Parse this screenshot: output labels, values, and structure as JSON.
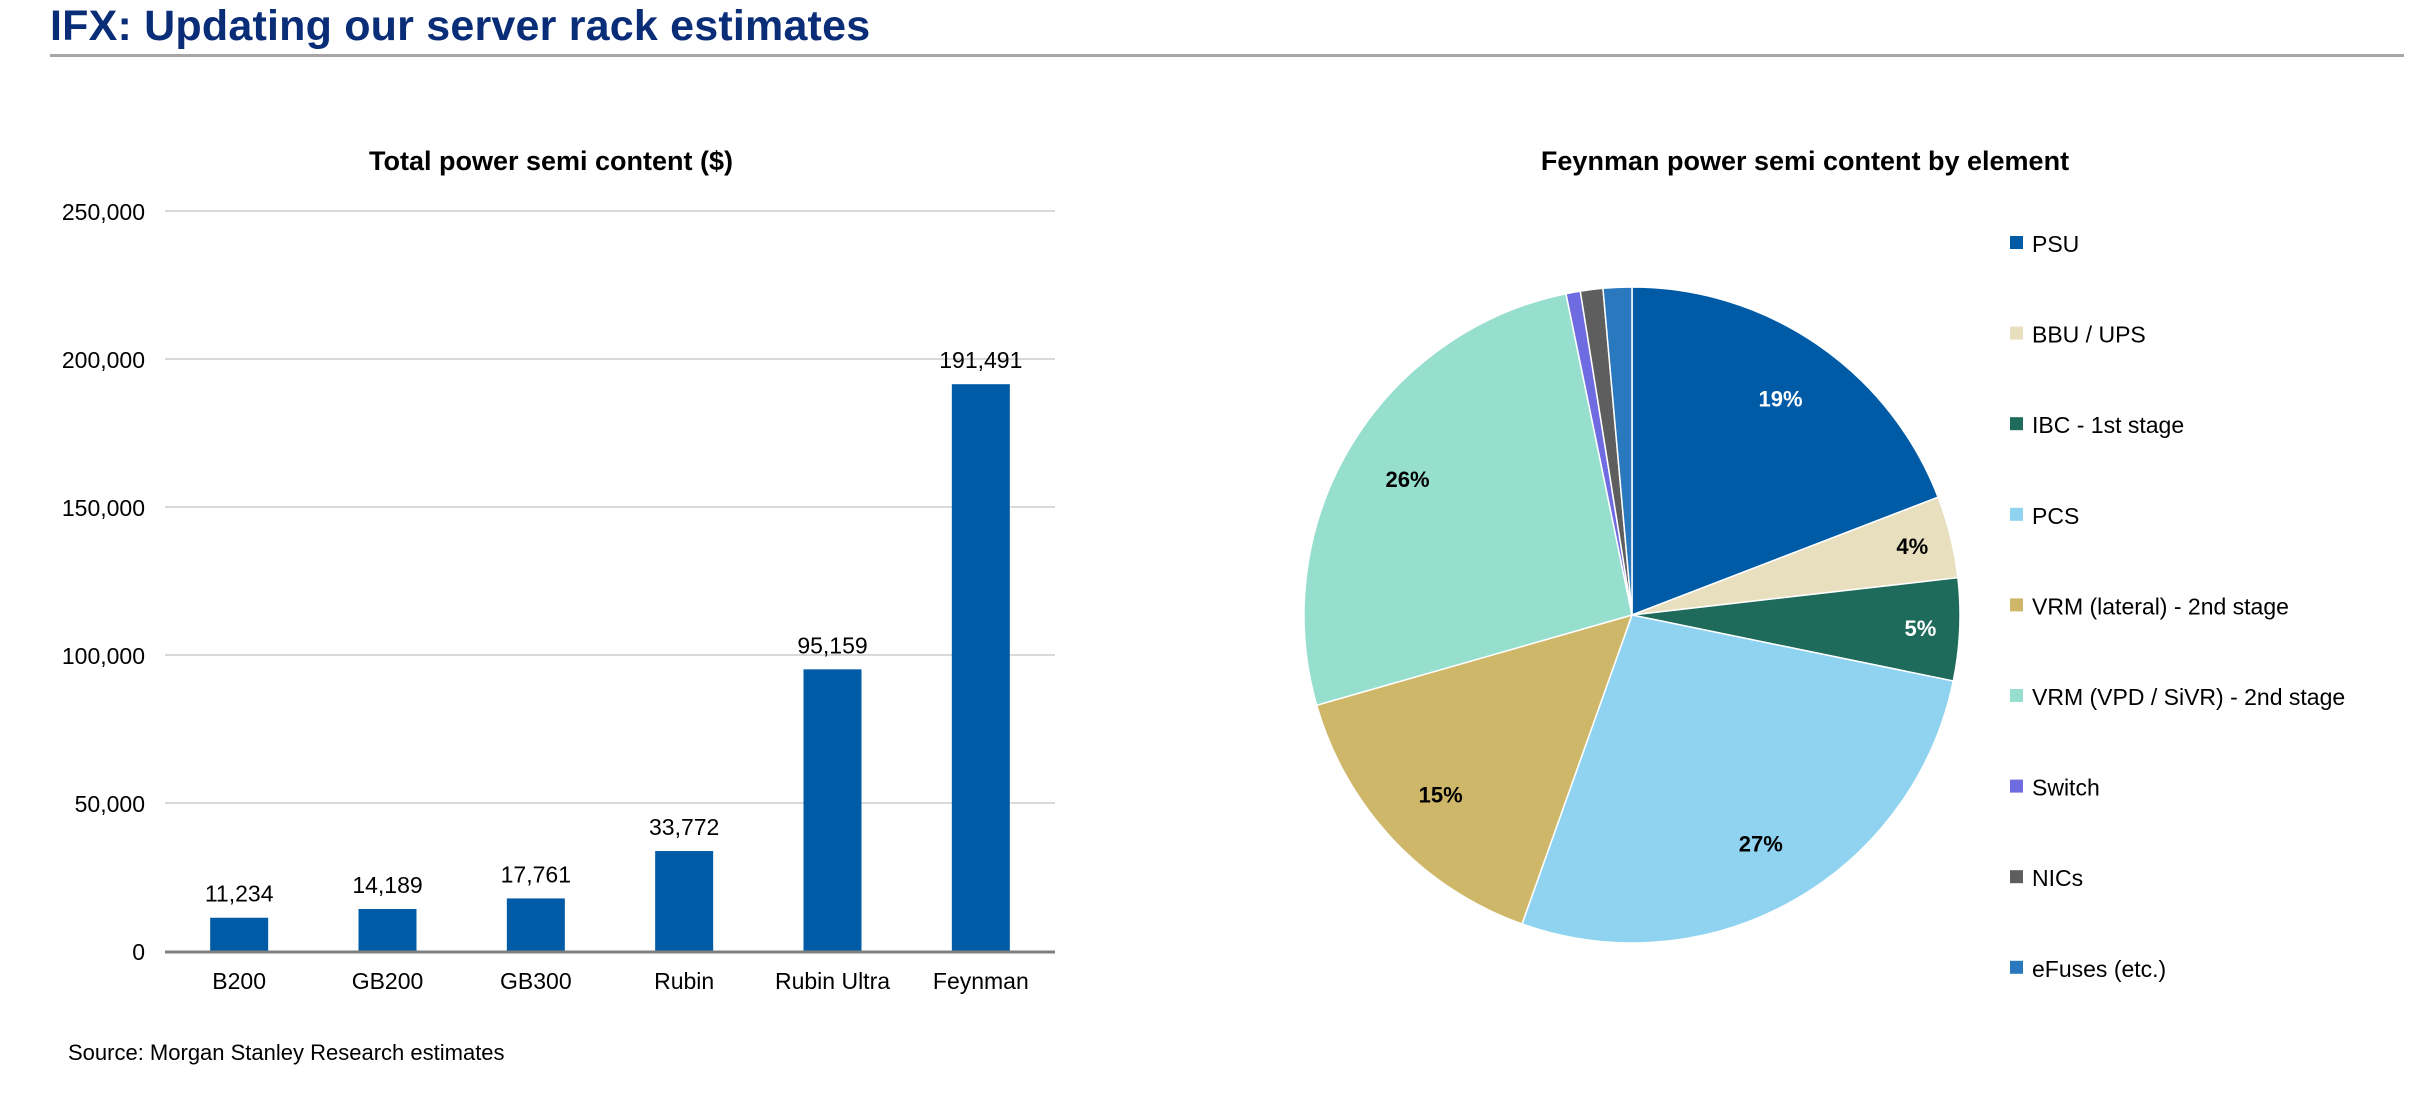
{
  "page": {
    "title": "IFX: Updating our server rack estimates",
    "source": "Source: Morgan Stanley Research estimates"
  },
  "colors": {
    "bar": "#005ba6",
    "grid": "#d9d9d9",
    "axis": "#7f7f7f",
    "title": "#0a2d78"
  },
  "chart_data": [
    {
      "type": "bar",
      "title": "Total power semi content ($)",
      "xlabel": "",
      "ylabel": "",
      "categories": [
        "B200",
        "GB200",
        "GB300",
        "Rubin",
        "Rubin Ultra",
        "Feynman"
      ],
      "values": [
        11234,
        14189,
        17761,
        33772,
        95159,
        191491
      ],
      "data_labels": [
        "11,234",
        "14,189",
        "17,761",
        "33,772",
        "95,159",
        "191,491"
      ],
      "ylim": [
        0,
        250000
      ],
      "yticks": [
        0,
        50000,
        100000,
        150000,
        200000,
        250000
      ],
      "ytick_labels": [
        "0",
        "50,000",
        "100,000",
        "150,000",
        "200,000",
        "250,000"
      ],
      "grid": true,
      "legend": "none"
    },
    {
      "type": "pie",
      "title": "Feynman power semi content by element",
      "legend": "right",
      "slices": [
        {
          "label": "PSU",
          "value": 19,
          "pct_label": "19%",
          "color": "#005ba6",
          "label_color": "#ffffff"
        },
        {
          "label": "BBU / UPS",
          "value": 4,
          "pct_label": "4%",
          "color": "#e8dfbf",
          "label_color": "#000000"
        },
        {
          "label": "IBC - 1st stage",
          "value": 5,
          "pct_label": "5%",
          "color": "#1f6b5b",
          "label_color": "#ffffff"
        },
        {
          "label": "PCS",
          "value": 27,
          "pct_label": "27%",
          "color": "#8fd3f0",
          "label_color": "#000000"
        },
        {
          "label": "VRM (lateral) - 2nd stage",
          "value": 15,
          "pct_label": "15%",
          "color": "#cfb76a",
          "label_color": "#000000"
        },
        {
          "label": "VRM (VPD / SiVR) - 2nd stage",
          "value": 26,
          "pct_label": "26%",
          "color": "#96dfcf",
          "label_color": "#000000"
        },
        {
          "label": "Switch",
          "value": 0.7,
          "pct_label": "",
          "color": "#6f6be0",
          "label_color": "#000000"
        },
        {
          "label": "NICs",
          "value": 1.1,
          "pct_label": "",
          "color": "#5e5e5e",
          "label_color": "#000000"
        },
        {
          "label": "eFuses (etc.)",
          "value": 1.4,
          "pct_label": "",
          "color": "#2a78bd",
          "label_color": "#000000"
        }
      ]
    }
  ]
}
